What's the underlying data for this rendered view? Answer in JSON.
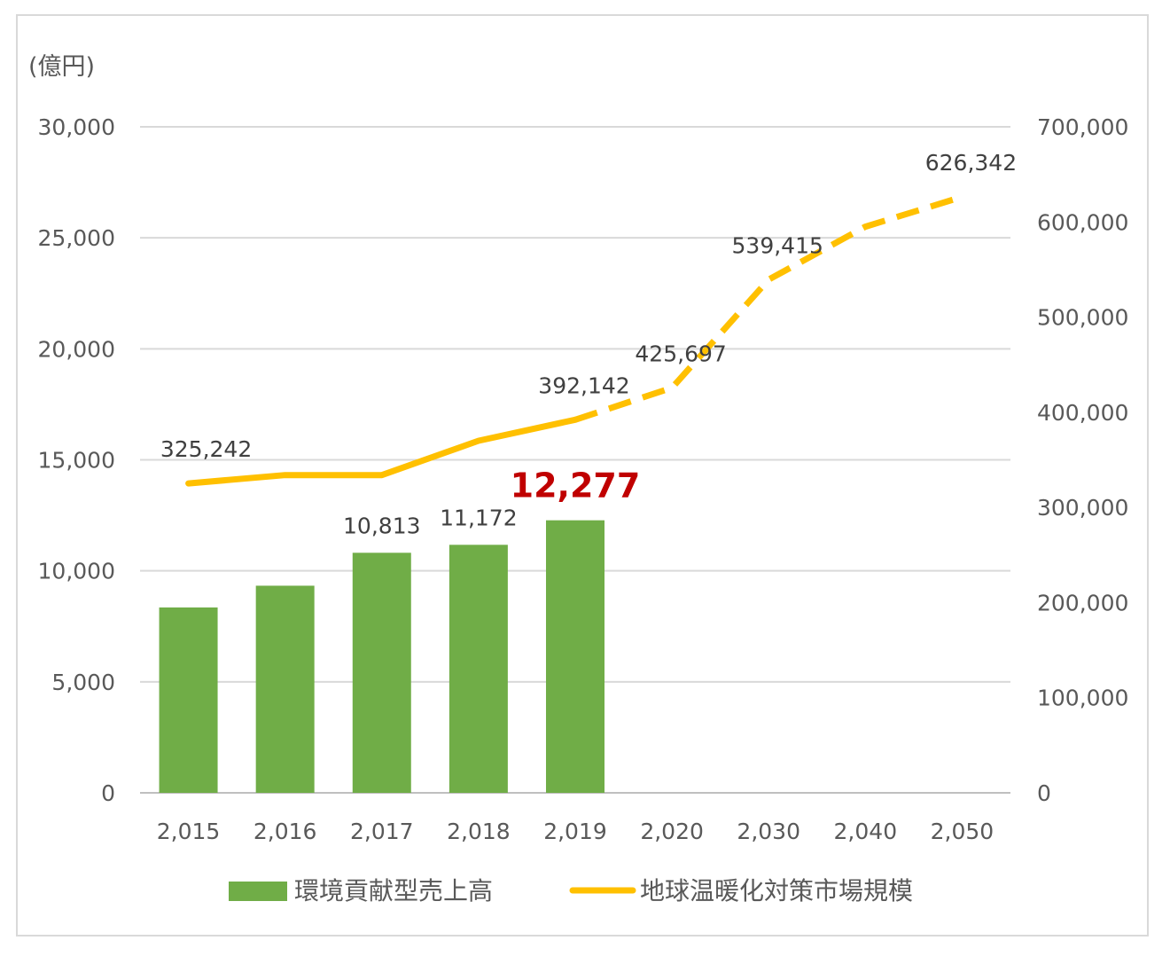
{
  "chart_data": {
    "type": "bar+line",
    "unit_label": "(億円)",
    "categories": [
      "2,015",
      "2,016",
      "2,017",
      "2,018",
      "2,019",
      "2,020",
      "2,030",
      "2,040",
      "2,050"
    ],
    "bar_series": {
      "name": "環境貢献型売上高",
      "color": "#70ad47",
      "axis": "left",
      "values": [
        8350,
        9330,
        10813,
        11172,
        12277,
        null,
        null,
        null,
        null
      ],
      "data_labels": [
        null,
        null,
        "10,813",
        "11,172",
        "12,277",
        null,
        null,
        null,
        null
      ],
      "highlight_index": 4
    },
    "line_series": {
      "name": "地球温暖化対策市場規模",
      "color": "#ffc000",
      "axis": "right",
      "values": [
        325242,
        334000,
        334000,
        370000,
        392142,
        425697,
        539415,
        595000,
        626342
      ],
      "solid_until_index": 4,
      "data_labels": [
        "325,242",
        null,
        null,
        null,
        "392,142",
        "425,697",
        "539,415",
        null,
        "626,342"
      ]
    },
    "left_axis": {
      "min": 0,
      "max": 30000,
      "step": 5000,
      "tick_labels": [
        "0",
        "5,000",
        "10,000",
        "15,000",
        "20,000",
        "25,000",
        "30,000"
      ]
    },
    "right_axis": {
      "min": 0,
      "max": 700000,
      "step": 100000,
      "tick_labels": [
        "0",
        "100,000",
        "200,000",
        "300,000",
        "400,000",
        "500,000",
        "600,000",
        "700,000"
      ]
    },
    "grid": true,
    "legend_position": "bottom"
  }
}
